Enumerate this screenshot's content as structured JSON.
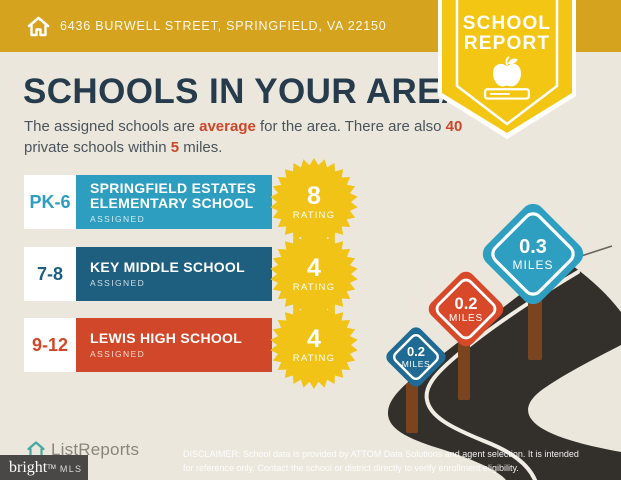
{
  "header": {
    "address": "6436 BURWELL STREET, SPRINGFIELD, VA 22150"
  },
  "badge": {
    "line1": "SCHOOL",
    "line2": "REPORT"
  },
  "title": "SCHOOLS IN YOUR AREA",
  "intro": {
    "line1_pre": "The assigned schools are ",
    "line1_hl1": "average",
    "line1_mid": " for the area. There are also ",
    "line1_hl2": "40",
    "line2_pre": "private schools within ",
    "line2_hl": "5",
    "line2_post": " miles."
  },
  "schools": [
    {
      "grades": "PK-6",
      "name": "SPRINGFIELD ESTATES ELEMENTARY SCHOOL",
      "status": "ASSIGNED",
      "rating": "8",
      "rating_label": "RATING",
      "color": "#2D9EBF"
    },
    {
      "grades": "7-8",
      "name": "KEY MIDDLE SCHOOL",
      "status": "ASSIGNED",
      "rating": "4",
      "rating_label": "RATING",
      "color": "#1E5F80"
    },
    {
      "grades": "9-12",
      "name": "LEWIS HIGH SCHOOL",
      "status": "ASSIGNED",
      "rating": "4",
      "rating_label": "RATING",
      "color": "#D04829"
    }
  ],
  "signs": [
    {
      "distance": "0.2",
      "unit": "MILES",
      "color": "#1F6B94"
    },
    {
      "distance": "0.2",
      "unit": "MILES",
      "color": "#D8492A"
    },
    {
      "distance": "0.3",
      "unit": "MILES",
      "color": "#2E9FC1"
    }
  ],
  "footer": {
    "logo_text": "ListReports",
    "mls_brand": "bright",
    "mls_tm": "TM",
    "mls_suffix": "MLS",
    "disclaimer_line1": "DISCLAIMER: School data is provided by ATTOM Data Solutions and agent selection. It is intended",
    "disclaimer_line2": "for reference only. Contact the school or district directly to verify enrollment eligibility."
  },
  "colors": {
    "header_gold": "#D5A31D",
    "badge_yellow": "#F3C614",
    "background_cream": "#ECE7DC",
    "title_navy": "#263C4C",
    "accent_red": "#CC4628",
    "road_dark": "#33302B",
    "post_brown": "#7A451E",
    "starburst_yellow": "#F0C316"
  }
}
